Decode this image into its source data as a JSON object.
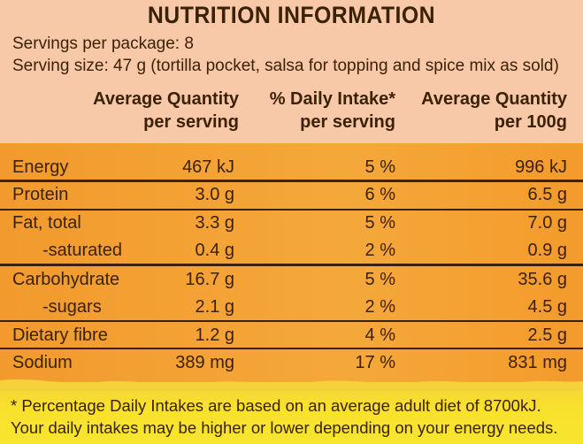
{
  "title": "NUTRITION INFORMATION",
  "servings_line": "Servings per package: 8",
  "serving_size_line": "Serving size: 47 g (tortilla pocket, salsa for topping and spice mix as sold)",
  "headers": {
    "col1_line1": "Average Quantity",
    "col1_line2": "per serving",
    "col2_line1": "% Daily Intake*",
    "col2_line2": "per serving",
    "col3_line1": "Average Quantity",
    "col3_line2": "per 100g"
  },
  "rows": [
    {
      "label": "Energy",
      "per_serving": "467 kJ",
      "daily_intake": "5 %",
      "per_100g": "996 kJ"
    },
    {
      "label": "Protein",
      "per_serving": "3.0 g",
      "daily_intake": "6 %",
      "per_100g": "6.5 g"
    },
    {
      "label": "Fat, total",
      "per_serving": "3.3 g",
      "daily_intake": "5 %",
      "per_100g": "7.0 g"
    },
    {
      "label": "-saturated",
      "per_serving": "0.4 g",
      "daily_intake": "2 %",
      "per_100g": "0.9 g"
    },
    {
      "label": "Carbohydrate",
      "per_serving": "16.7 g",
      "daily_intake": "5 %",
      "per_100g": "35.6 g"
    },
    {
      "label": "-sugars",
      "per_serving": "2.1 g",
      "daily_intake": "2 %",
      "per_100g": "4.5 g"
    },
    {
      "label": "Dietary fibre",
      "per_serving": "1.2 g",
      "daily_intake": "4 %",
      "per_100g": "2.5 g"
    },
    {
      "label": "Sodium",
      "per_serving": "389 mg",
      "daily_intake": "17 %",
      "per_100g": "831 mg"
    }
  ],
  "footnote_line1": "* Percentage Daily Intakes are based on an average adult diet of 8700kJ.",
  "footnote_line2": "Your daily intakes may be higher or lower depending on your energy needs.",
  "colors": {
    "text": "#3b2206",
    "top_band": "#f8c9a8",
    "table_band": "#f5a83a",
    "footer_band": "#f7e52e"
  }
}
